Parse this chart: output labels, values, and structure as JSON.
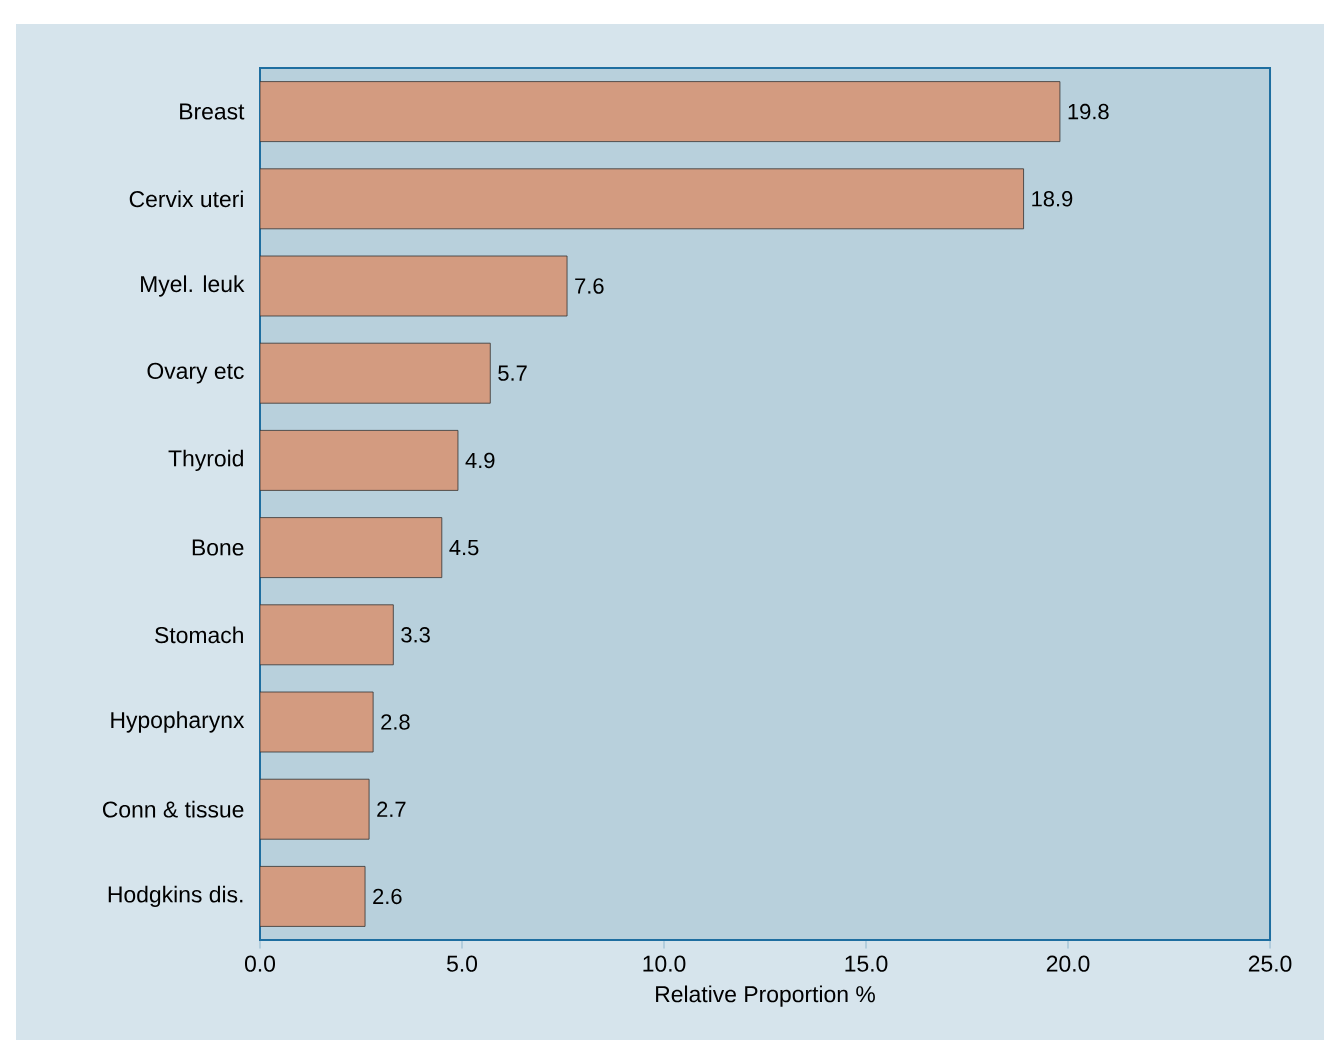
{
  "chart_data": {
    "type": "bar",
    "orientation": "horizontal",
    "xlabel": "Relative Proportion %",
    "categories": [
      "Breast",
      "Cervix uteri",
      "Myel. leuk",
      "Ovary etc",
      "Thyroid",
      "Bone",
      "Stomach",
      "Hypopharynx",
      "Conn & tissue",
      "Hodgkins dis."
    ],
    "values": [
      19.8,
      18.9,
      7.6,
      5.7,
      4.9,
      4.5,
      3.3,
      2.8,
      2.7,
      2.6
    ],
    "color": "#d39b80",
    "data_labels": true,
    "xlim": [
      0,
      25
    ],
    "xticks": [
      {
        "value": 0,
        "label": "0.0"
      },
      {
        "value": 5,
        "label": "5.0"
      },
      {
        "value": 10,
        "label": "10.0"
      },
      {
        "value": 15,
        "label": "15.0"
      },
      {
        "value": 20,
        "label": "20.0"
      },
      {
        "value": 25,
        "label": "25.0"
      }
    ],
    "grid": false
  }
}
